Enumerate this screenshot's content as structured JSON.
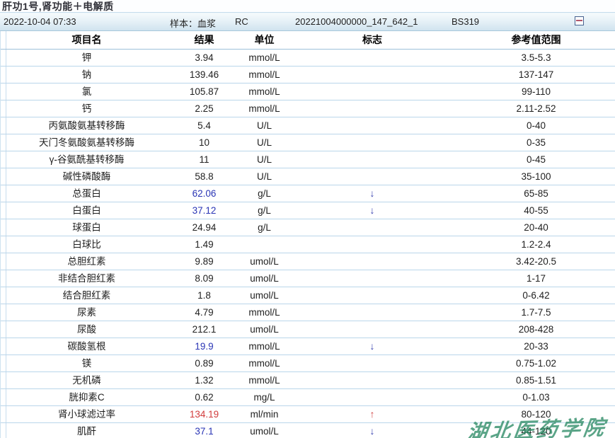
{
  "report": {
    "title": "肝功1号,肾功能＋电解质"
  },
  "info": {
    "datetime": "2022-10-04 07:33",
    "sample": "样本：血浆",
    "rc": "RC",
    "sample_id": "20221004000000_147_642_1",
    "analyzer": "BS319",
    "collapse_icon": "minimize-box-icon"
  },
  "colors": {
    "low_flag": "#2a35b5",
    "high_flag": "#d23b3b",
    "row_border": "#bad6ea",
    "watermark_green": "#2c8a65"
  },
  "flags": {
    "low": "↓",
    "high": "↑"
  },
  "watermark_text": "湖北医药学院",
  "table": {
    "headers": [
      "项目名",
      "结果",
      "单位",
      "标志",
      "参考值范围"
    ],
    "rows": [
      {
        "name": "钾",
        "result": "3.94",
        "unit": "mmol/L",
        "flag": "",
        "status": "normal",
        "range": "3.5-5.3"
      },
      {
        "name": "钠",
        "result": "139.46",
        "unit": "mmol/L",
        "flag": "",
        "status": "normal",
        "range": "137-147"
      },
      {
        "name": "氯",
        "result": "105.87",
        "unit": "mmol/L",
        "flag": "",
        "status": "normal",
        "range": "99-110"
      },
      {
        "name": "钙",
        "result": "2.25",
        "unit": "mmol/L",
        "flag": "",
        "status": "normal",
        "range": "2.11-2.52"
      },
      {
        "name": "丙氨酸氨基转移酶",
        "result": "5.4",
        "unit": "U/L",
        "flag": "",
        "status": "normal",
        "range": "0-40"
      },
      {
        "name": "天门冬氨酸氨基转移酶",
        "result": "10",
        "unit": "U/L",
        "flag": "",
        "status": "normal",
        "range": "0-35"
      },
      {
        "name": "γ-谷氨酰基转移酶",
        "result": "11",
        "unit": "U/L",
        "flag": "",
        "status": "normal",
        "range": "0-45"
      },
      {
        "name": "碱性磷酸酶",
        "result": "58.8",
        "unit": "U/L",
        "flag": "",
        "status": "normal",
        "range": "35-100"
      },
      {
        "name": "总蛋白",
        "result": "62.06",
        "unit": "g/L",
        "flag": "↓",
        "status": "low",
        "range": "65-85"
      },
      {
        "name": "白蛋白",
        "result": "37.12",
        "unit": "g/L",
        "flag": "↓",
        "status": "low",
        "range": "40-55"
      },
      {
        "name": "球蛋白",
        "result": "24.94",
        "unit": "g/L",
        "flag": "",
        "status": "normal",
        "range": "20-40"
      },
      {
        "name": "白球比",
        "result": "1.49",
        "unit": "",
        "flag": "",
        "status": "normal",
        "range": "1.2-2.4"
      },
      {
        "name": "总胆红素",
        "result": "9.89",
        "unit": "umol/L",
        "flag": "",
        "status": "normal",
        "range": "3.42-20.5"
      },
      {
        "name": "非结合胆红素",
        "result": "8.09",
        "unit": "umol/L",
        "flag": "",
        "status": "normal",
        "range": "1-17"
      },
      {
        "name": "结合胆红素",
        "result": "1.8",
        "unit": "umol/L",
        "flag": "",
        "status": "normal",
        "range": "0-6.42"
      },
      {
        "name": "尿素",
        "result": "4.79",
        "unit": "mmol/L",
        "flag": "",
        "status": "normal",
        "range": "1.7-7.5"
      },
      {
        "name": "尿酸",
        "result": "212.1",
        "unit": "umol/L",
        "flag": "",
        "status": "normal",
        "range": "208-428"
      },
      {
        "name": "碳酸氢根",
        "result": "19.9",
        "unit": "mmol/L",
        "flag": "↓",
        "status": "low",
        "range": "20-33"
      },
      {
        "name": "镁",
        "result": "0.89",
        "unit": "mmol/L",
        "flag": "",
        "status": "normal",
        "range": "0.75-1.02"
      },
      {
        "name": "无机磷",
        "result": "1.32",
        "unit": "mmol/L",
        "flag": "",
        "status": "normal",
        "range": "0.85-1.51"
      },
      {
        "name": "胱抑素C",
        "result": "0.62",
        "unit": "mg/L",
        "flag": "",
        "status": "normal",
        "range": "0-1.03"
      },
      {
        "name": "肾小球滤过率",
        "result": "134.19",
        "unit": "ml/min",
        "flag": "↑",
        "status": "high",
        "range": "80-120"
      },
      {
        "name": "肌酐",
        "result": "37.1",
        "unit": "umol/L",
        "flag": "↓",
        "status": "low",
        "range": "44-120"
      }
    ]
  }
}
